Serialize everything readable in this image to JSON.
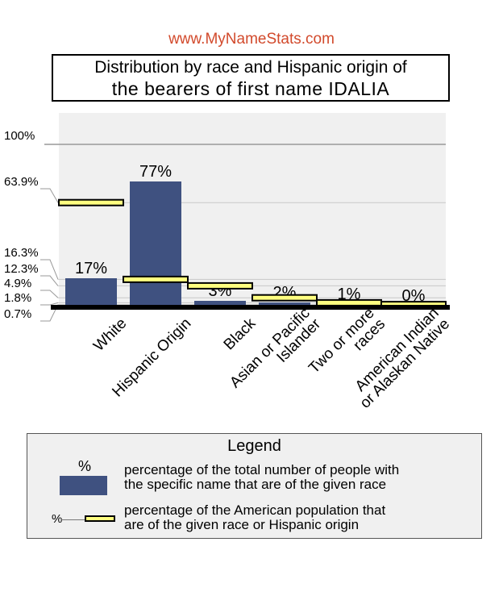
{
  "site_label": "www.MyNameStats.com",
  "title_line1": "Distribution by race and Hispanic origin of",
  "title_line2": "the bearers of first name IDALIA",
  "colors": {
    "bar": "#3f5180",
    "population_marker": "#ffff80",
    "plot_bg": "#f0f0f0",
    "site": "#d24a2c"
  },
  "chart_data": {
    "type": "bar",
    "categories": [
      [
        "White"
      ],
      [
        "Hispanic Origin"
      ],
      [
        "Black"
      ],
      [
        "Asian or Pacific",
        "Islander"
      ],
      [
        "Two or more",
        "races"
      ],
      [
        "American Indian",
        "or Alaskan Native"
      ]
    ],
    "values": [
      17,
      77,
      3,
      2,
      1,
      0
    ],
    "value_labels": [
      "17%",
      "77%",
      "3%",
      "2%",
      "1%",
      "0%"
    ],
    "population_values": [
      63.9,
      16.3,
      12.3,
      4.9,
      1.8,
      0.7
    ],
    "ytick_labels": [
      "100%",
      "63.9%",
      "16.3%",
      "12.3%",
      "4.9%",
      "1.8%",
      "0.7%"
    ],
    "ytick_values": [
      100,
      63.9,
      16.3,
      12.3,
      4.9,
      1.8,
      0.7
    ],
    "ylim": [
      0,
      100
    ]
  },
  "legend": {
    "title": "Legend",
    "bar_symbol": "%",
    "bar_text_line1": "percentage of the total number of people with",
    "bar_text_line2": "the specific name that are of the given race",
    "marker_symbol": "%",
    "marker_text_line1": "percentage of the American population that",
    "marker_text_line2": "are of the given race or Hispanic origin"
  }
}
